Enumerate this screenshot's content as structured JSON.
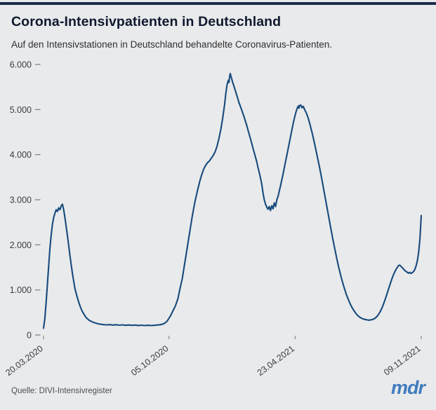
{
  "header": {
    "title": "Corona-Intensivpatienten in Deutschland",
    "subtitle": "Auf den Intensivstationen in Deutschland behandelte Coronavirus-Patienten."
  },
  "footer": {
    "source": "Quelle: DIVI-Intensivregister",
    "logo": "mdr"
  },
  "colors": {
    "background": "#e9eaec",
    "accent_bar": "#1c2b49",
    "title": "#10192e",
    "subtitle": "#2e2e2e",
    "line": "#174a7c",
    "tick": "#8a8a8a",
    "axis_text": "#3c3c3c",
    "source_text": "#4e4e4e",
    "logo": "#3f7cbf"
  },
  "chart_data": {
    "type": "line",
    "title": "Corona-Intensivpatienten in Deutschland",
    "subtitle": "Auf den Intensivstationen in Deutschland behandelte Coronavirus-Patienten.",
    "source": "Quelle: DIVI-Intensivregister",
    "xlabel": "",
    "ylabel": "",
    "ylim": [
      0,
      6000
    ],
    "yticks": [
      0,
      1000,
      2000,
      3000,
      4000,
      5000,
      6000
    ],
    "ytick_labels": [
      "0",
      "1.000",
      "2.000",
      "3.000",
      "4.000",
      "5.000",
      "6.000"
    ],
    "grid": false,
    "legend": false,
    "x_axis": {
      "start_date": "20.03.2020",
      "end_date": "09.11.2021",
      "total_days": 599,
      "tick_labels": [
        "20.03.2020",
        "05.10.2020",
        "23.04.2021",
        "09.11.2021"
      ],
      "tick_days": [
        0,
        199,
        399,
        599
      ]
    },
    "series": [
      {
        "name": "Corona-Intensivpatienten",
        "points": [
          [
            0,
            150
          ],
          [
            2,
            350
          ],
          [
            4,
            700
          ],
          [
            6,
            1100
          ],
          [
            8,
            1500
          ],
          [
            10,
            1900
          ],
          [
            12,
            2200
          ],
          [
            14,
            2450
          ],
          [
            16,
            2600
          ],
          [
            18,
            2700
          ],
          [
            20,
            2780
          ],
          [
            22,
            2740
          ],
          [
            24,
            2820
          ],
          [
            26,
            2780
          ],
          [
            28,
            2860
          ],
          [
            30,
            2900
          ],
          [
            32,
            2780
          ],
          [
            34,
            2600
          ],
          [
            36,
            2400
          ],
          [
            38,
            2200
          ],
          [
            40,
            1980
          ],
          [
            42,
            1750
          ],
          [
            44,
            1550
          ],
          [
            46,
            1350
          ],
          [
            48,
            1180
          ],
          [
            50,
            1020
          ],
          [
            53,
            860
          ],
          [
            56,
            720
          ],
          [
            59,
            600
          ],
          [
            62,
            510
          ],
          [
            65,
            440
          ],
          [
            68,
            380
          ],
          [
            72,
            330
          ],
          [
            76,
            300
          ],
          [
            80,
            275
          ],
          [
            85,
            255
          ],
          [
            90,
            240
          ],
          [
            95,
            230
          ],
          [
            100,
            225
          ],
          [
            105,
            230
          ],
          [
            110,
            220
          ],
          [
            115,
            228
          ],
          [
            120,
            218
          ],
          [
            125,
            225
          ],
          [
            130,
            215
          ],
          [
            135,
            222
          ],
          [
            140,
            215
          ],
          [
            145,
            220
          ],
          [
            150,
            212
          ],
          [
            155,
            218
          ],
          [
            160,
            210
          ],
          [
            165,
            216
          ],
          [
            170,
            210
          ],
          [
            175,
            215
          ],
          [
            180,
            220
          ],
          [
            185,
            228
          ],
          [
            190,
            245
          ],
          [
            195,
            290
          ],
          [
            198,
            350
          ],
          [
            202,
            440
          ],
          [
            205,
            530
          ],
          [
            209,
            640
          ],
          [
            213,
            800
          ],
          [
            216,
            1000
          ],
          [
            220,
            1250
          ],
          [
            224,
            1600
          ],
          [
            228,
            1950
          ],
          [
            232,
            2300
          ],
          [
            236,
            2650
          ],
          [
            240,
            2950
          ],
          [
            244,
            3200
          ],
          [
            248,
            3420
          ],
          [
            251,
            3560
          ],
          [
            254,
            3680
          ],
          [
            257,
            3760
          ],
          [
            260,
            3820
          ],
          [
            263,
            3860
          ],
          [
            266,
            3920
          ],
          [
            269,
            3980
          ],
          [
            272,
            4060
          ],
          [
            275,
            4180
          ],
          [
            278,
            4350
          ],
          [
            281,
            4550
          ],
          [
            284,
            4800
          ],
          [
            287,
            5100
          ],
          [
            289,
            5350
          ],
          [
            291,
            5550
          ],
          [
            293,
            5650
          ],
          [
            294,
            5600
          ],
          [
            295,
            5720
          ],
          [
            296,
            5800
          ],
          [
            298,
            5700
          ],
          [
            300,
            5600
          ],
          [
            302,
            5520
          ],
          [
            304,
            5430
          ],
          [
            306,
            5340
          ],
          [
            308,
            5250
          ],
          [
            310,
            5150
          ],
          [
            312,
            5080
          ],
          [
            314,
            5000
          ],
          [
            316,
            4920
          ],
          [
            318,
            4840
          ],
          [
            320,
            4750
          ],
          [
            322,
            4660
          ],
          [
            324,
            4560
          ],
          [
            326,
            4460
          ],
          [
            328,
            4360
          ],
          [
            330,
            4260
          ],
          [
            332,
            4150
          ],
          [
            334,
            4050
          ],
          [
            336,
            3950
          ],
          [
            338,
            3850
          ],
          [
            340,
            3720
          ],
          [
            343,
            3550
          ],
          [
            346,
            3350
          ],
          [
            348,
            3150
          ],
          [
            350,
            3000
          ],
          [
            352,
            2900
          ],
          [
            354,
            2840
          ],
          [
            356,
            2790
          ],
          [
            358,
            2850
          ],
          [
            360,
            2760
          ],
          [
            362,
            2870
          ],
          [
            364,
            2800
          ],
          [
            366,
            2930
          ],
          [
            368,
            2850
          ],
          [
            370,
            3000
          ],
          [
            372,
            3080
          ],
          [
            374,
            3200
          ],
          [
            376,
            3320
          ],
          [
            378,
            3450
          ],
          [
            380,
            3580
          ],
          [
            382,
            3720
          ],
          [
            384,
            3860
          ],
          [
            386,
            4000
          ],
          [
            388,
            4140
          ],
          [
            390,
            4280
          ],
          [
            392,
            4420
          ],
          [
            394,
            4560
          ],
          [
            396,
            4700
          ],
          [
            398,
            4820
          ],
          [
            400,
            4930
          ],
          [
            402,
            5020
          ],
          [
            404,
            5080
          ],
          [
            405,
            5030
          ],
          [
            406,
            5090
          ],
          [
            408,
            5100
          ],
          [
            410,
            5040
          ],
          [
            412,
            5070
          ],
          [
            414,
            5000
          ],
          [
            416,
            4950
          ],
          [
            418,
            4880
          ],
          [
            420,
            4800
          ],
          [
            422,
            4700
          ],
          [
            424,
            4590
          ],
          [
            426,
            4480
          ],
          [
            428,
            4360
          ],
          [
            430,
            4230
          ],
          [
            432,
            4100
          ],
          [
            435,
            3900
          ],
          [
            438,
            3700
          ],
          [
            441,
            3480
          ],
          [
            444,
            3250
          ],
          [
            447,
            3020
          ],
          [
            450,
            2790
          ],
          [
            453,
            2560
          ],
          [
            456,
            2330
          ],
          [
            459,
            2110
          ],
          [
            462,
            1900
          ],
          [
            465,
            1700
          ],
          [
            468,
            1510
          ],
          [
            471,
            1340
          ],
          [
            474,
            1180
          ],
          [
            477,
            1040
          ],
          [
            480,
            910
          ],
          [
            483,
            800
          ],
          [
            486,
            700
          ],
          [
            489,
            615
          ],
          [
            492,
            545
          ],
          [
            495,
            485
          ],
          [
            498,
            435
          ],
          [
            501,
            400
          ],
          [
            504,
            375
          ],
          [
            507,
            355
          ],
          [
            510,
            345
          ],
          [
            513,
            335
          ],
          [
            516,
            330
          ],
          [
            519,
            335
          ],
          [
            522,
            345
          ],
          [
            525,
            365
          ],
          [
            528,
            400
          ],
          [
            531,
            450
          ],
          [
            534,
            520
          ],
          [
            537,
            610
          ],
          [
            540,
            720
          ],
          [
            543,
            840
          ],
          [
            546,
            970
          ],
          [
            549,
            1100
          ],
          [
            552,
            1230
          ],
          [
            555,
            1340
          ],
          [
            558,
            1430
          ],
          [
            561,
            1500
          ],
          [
            563,
            1540
          ],
          [
            565,
            1550
          ],
          [
            567,
            1520
          ],
          [
            569,
            1490
          ],
          [
            571,
            1460
          ],
          [
            573,
            1430
          ],
          [
            575,
            1410
          ],
          [
            577,
            1390
          ],
          [
            579,
            1370
          ],
          [
            581,
            1390
          ],
          [
            583,
            1365
          ],
          [
            585,
            1385
          ],
          [
            587,
            1410
          ],
          [
            589,
            1460
          ],
          [
            591,
            1540
          ],
          [
            593,
            1660
          ],
          [
            595,
            1850
          ],
          [
            597,
            2150
          ],
          [
            598,
            2400
          ],
          [
            599,
            2650
          ]
        ]
      }
    ]
  }
}
